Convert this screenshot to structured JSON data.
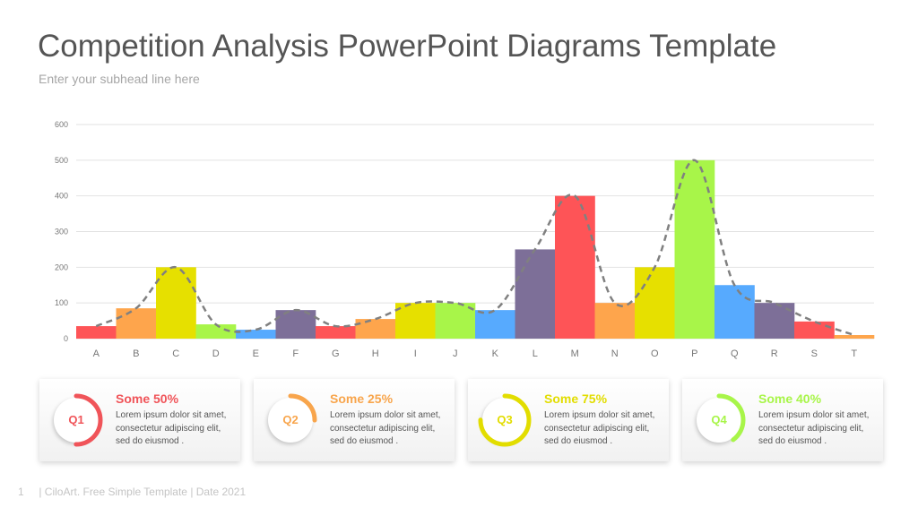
{
  "header": {
    "title": "Competition Analysis PowerPoint Diagrams Template",
    "subtitle": "Enter your subhead line here"
  },
  "chart_data": {
    "type": "bar",
    "title": "",
    "xlabel": "",
    "ylabel": "",
    "ylim": [
      0,
      600
    ],
    "yticks": [
      0,
      100,
      200,
      300,
      400,
      500,
      600
    ],
    "grid": true,
    "legend": "none",
    "categories": [
      "A",
      "B",
      "C",
      "D",
      "E",
      "F",
      "G",
      "H",
      "I",
      "J",
      "K",
      "L",
      "M",
      "N",
      "O",
      "P",
      "Q",
      "R",
      "S",
      "T"
    ],
    "values": [
      35,
      85,
      200,
      40,
      25,
      80,
      35,
      55,
      100,
      100,
      80,
      250,
      400,
      100,
      200,
      500,
      150,
      100,
      48,
      10
    ],
    "colors": [
      "#fe5457",
      "#fea54c",
      "#e6e000",
      "#a8f549",
      "#57aafe",
      "#7d6f98",
      "#fe5457",
      "#fea54c",
      "#e6e000",
      "#a8f549",
      "#57aafe",
      "#7d6f98",
      "#fe5457",
      "#fea54c",
      "#e6e000",
      "#a8f549",
      "#57aafe",
      "#7d6f98",
      "#fe5457",
      "#fea54c"
    ],
    "trend_line": {
      "style": "dashed smooth",
      "color": "#808080"
    }
  },
  "cards": [
    {
      "q": "Q1",
      "title": "Some 50%",
      "percent": 50,
      "color": "#f05459",
      "text": "Lorem ipsum dolor sit amet, consectetur adipiscing elit, sed do eiusmod ."
    },
    {
      "q": "Q2",
      "title": "Some 25%",
      "percent": 25,
      "color": "#f8a54c",
      "text": "Lorem ipsum dolor sit amet, consectetur adipiscing elit, sed do eiusmod ."
    },
    {
      "q": "Q3",
      "title": "Some 75%",
      "percent": 75,
      "color": "#e2dd00",
      "text": "Lorem ipsum dolor sit amet, consectetur adipiscing elit, sed do eiusmod ."
    },
    {
      "q": "Q4",
      "title": "Some 40%",
      "percent": 40,
      "color": "#a8f549",
      "text": "Lorem ipsum dolor sit amet, consectetur adipiscing elit, sed do eiusmod ."
    }
  ],
  "footer": {
    "page": "1",
    "text": "| CiloArt. Free Simple Template | Date 2021"
  }
}
